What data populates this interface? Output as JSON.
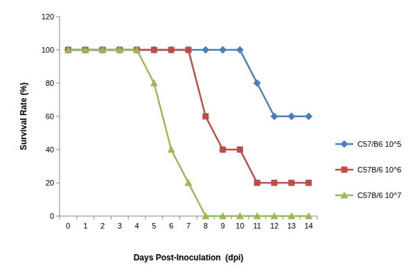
{
  "chart_data": {
    "type": "line",
    "x_label": "Days Post-Inoculation  (dpi)",
    "y_label": "Survival Rate (%)",
    "categories": [
      "0",
      "1",
      "2",
      "3",
      "4",
      "5",
      "6",
      "7",
      "8",
      "9",
      "10",
      "11",
      "12",
      "13",
      "14"
    ],
    "ylim": [
      0,
      120
    ],
    "yticks": [
      0,
      20,
      40,
      60,
      80,
      100,
      120
    ],
    "grid": false,
    "legend": "right",
    "series": [
      {
        "name": "C57/B6 10^5",
        "color": "#4a7ebb",
        "marker": "diamond",
        "values": [
          100,
          100,
          100,
          100,
          100,
          100,
          100,
          100,
          100,
          100,
          100,
          80,
          60,
          60,
          60
        ]
      },
      {
        "name": "C57B/6 10^6",
        "color": "#be4b48",
        "marker": "square",
        "values": [
          100,
          100,
          100,
          100,
          100,
          100,
          100,
          100,
          60,
          40,
          40,
          20,
          20,
          20,
          20
        ]
      },
      {
        "name": "C57B/6 10^7",
        "color": "#98b954",
        "marker": "triangle",
        "values": [
          100,
          100,
          100,
          100,
          100,
          80,
          40,
          20,
          0,
          0,
          0,
          0,
          0,
          0,
          0
        ]
      }
    ]
  }
}
